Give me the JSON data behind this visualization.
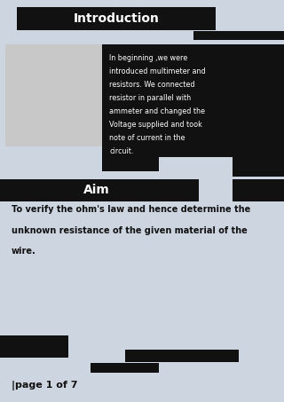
{
  "bg_color": "#cdd5e0",
  "title": "Introduction",
  "title_bg": "#111111",
  "title_color": "#ffffff",
  "aim_title": "Aim",
  "aim_bg": "#111111",
  "aim_color": "#ffffff",
  "intro_text_lines": [
    "In beginning ,we were",
    "introduced multimeter and",
    "resistors. We connected",
    "resistor in parallel with",
    "ammeter and changed the",
    "Voltage supplied and took",
    "note of current in the",
    "circuit."
  ],
  "intro_text_color": "#ffffff",
  "intro_bg": "#111111",
  "aim_body_lines": [
    "To verify the ohm's law and hence determine the",
    "unknown resistance of the given material of the",
    "wire."
  ],
  "aim_body_color": "#111111",
  "footer": "|page 1 of 7",
  "footer_color": "#111111"
}
